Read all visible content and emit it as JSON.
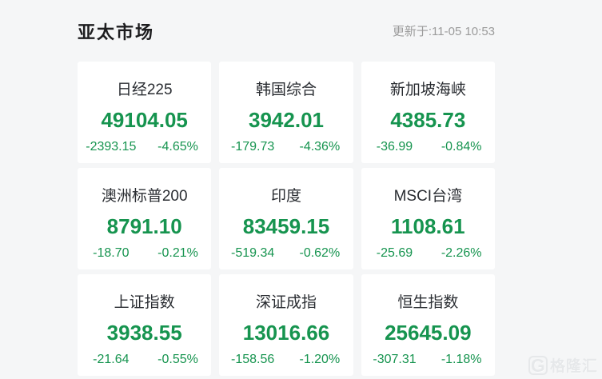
{
  "header": {
    "title": "亚太市场",
    "updated": "更新于:11-05 10:53"
  },
  "colors": {
    "down_green": "#16944f",
    "page_bg": "#f5f6f7",
    "card_bg": "#ffffff",
    "title_color": "#1d1d1f",
    "name_color": "#2a2d32",
    "muted_color": "#9b9b9b",
    "watermark_color": "#e6e8ea"
  },
  "indices": [
    {
      "name": "日经225",
      "value": "49104.05",
      "change": "-2393.15",
      "change_pct": "-4.65%"
    },
    {
      "name": "韩国综合",
      "value": "3942.01",
      "change": "-179.73",
      "change_pct": "-4.36%"
    },
    {
      "name": "新加坡海峡",
      "value": "4385.73",
      "change": "-36.99",
      "change_pct": "-0.84%"
    },
    {
      "name": "澳洲标普200",
      "value": "8791.10",
      "change": "-18.70",
      "change_pct": "-0.21%"
    },
    {
      "name": "印度",
      "value": "83459.15",
      "change": "-519.34",
      "change_pct": "-0.62%"
    },
    {
      "name": "MSCI台湾",
      "value": "1108.61",
      "change": "-25.69",
      "change_pct": "-2.26%"
    },
    {
      "name": "上证指数",
      "value": "3938.55",
      "change": "-21.64",
      "change_pct": "-0.55%"
    },
    {
      "name": "深证成指",
      "value": "13016.66",
      "change": "-158.56",
      "change_pct": "-1.20%"
    },
    {
      "name": "恒生指数",
      "value": "25645.09",
      "change": "-307.31",
      "change_pct": "-1.18%"
    }
  ],
  "watermark": {
    "logo_letter": "G",
    "text": "格隆汇"
  }
}
